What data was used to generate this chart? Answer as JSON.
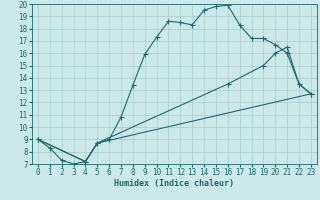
{
  "xlabel": "Humidex (Indice chaleur)",
  "bg_color": "#cce8e8",
  "grid_color": "#aacccc",
  "line_color": "#1a6b6b",
  "xlim": [
    -0.5,
    23.5
  ],
  "ylim": [
    7,
    20
  ],
  "yticks": [
    7,
    8,
    9,
    10,
    11,
    12,
    13,
    14,
    15,
    16,
    17,
    18,
    19,
    20
  ],
  "xticks": [
    0,
    1,
    2,
    3,
    4,
    5,
    6,
    7,
    8,
    9,
    10,
    11,
    12,
    13,
    14,
    15,
    16,
    17,
    18,
    19,
    20,
    21,
    22,
    23
  ],
  "line1_x": [
    0,
    1,
    2,
    3,
    4,
    5,
    6,
    7,
    8,
    9,
    10,
    11,
    12,
    13,
    14,
    15,
    16,
    17,
    18,
    19,
    20,
    21,
    22,
    23
  ],
  "line1_y": [
    9.0,
    8.3,
    7.3,
    7.0,
    7.2,
    8.7,
    9.0,
    10.8,
    13.4,
    15.9,
    17.3,
    18.6,
    18.5,
    18.3,
    19.5,
    19.8,
    19.9,
    18.3,
    17.2,
    17.2,
    16.7,
    16.0,
    13.5,
    12.7
  ],
  "line2_x": [
    0,
    4,
    5,
    16,
    19,
    20,
    21,
    22,
    23
  ],
  "line2_y": [
    9.0,
    7.2,
    8.7,
    13.5,
    15.0,
    16.0,
    16.5,
    13.5,
    12.7
  ],
  "line3_x": [
    0,
    4,
    5,
    23
  ],
  "line3_y": [
    9.0,
    7.2,
    8.7,
    12.7
  ]
}
